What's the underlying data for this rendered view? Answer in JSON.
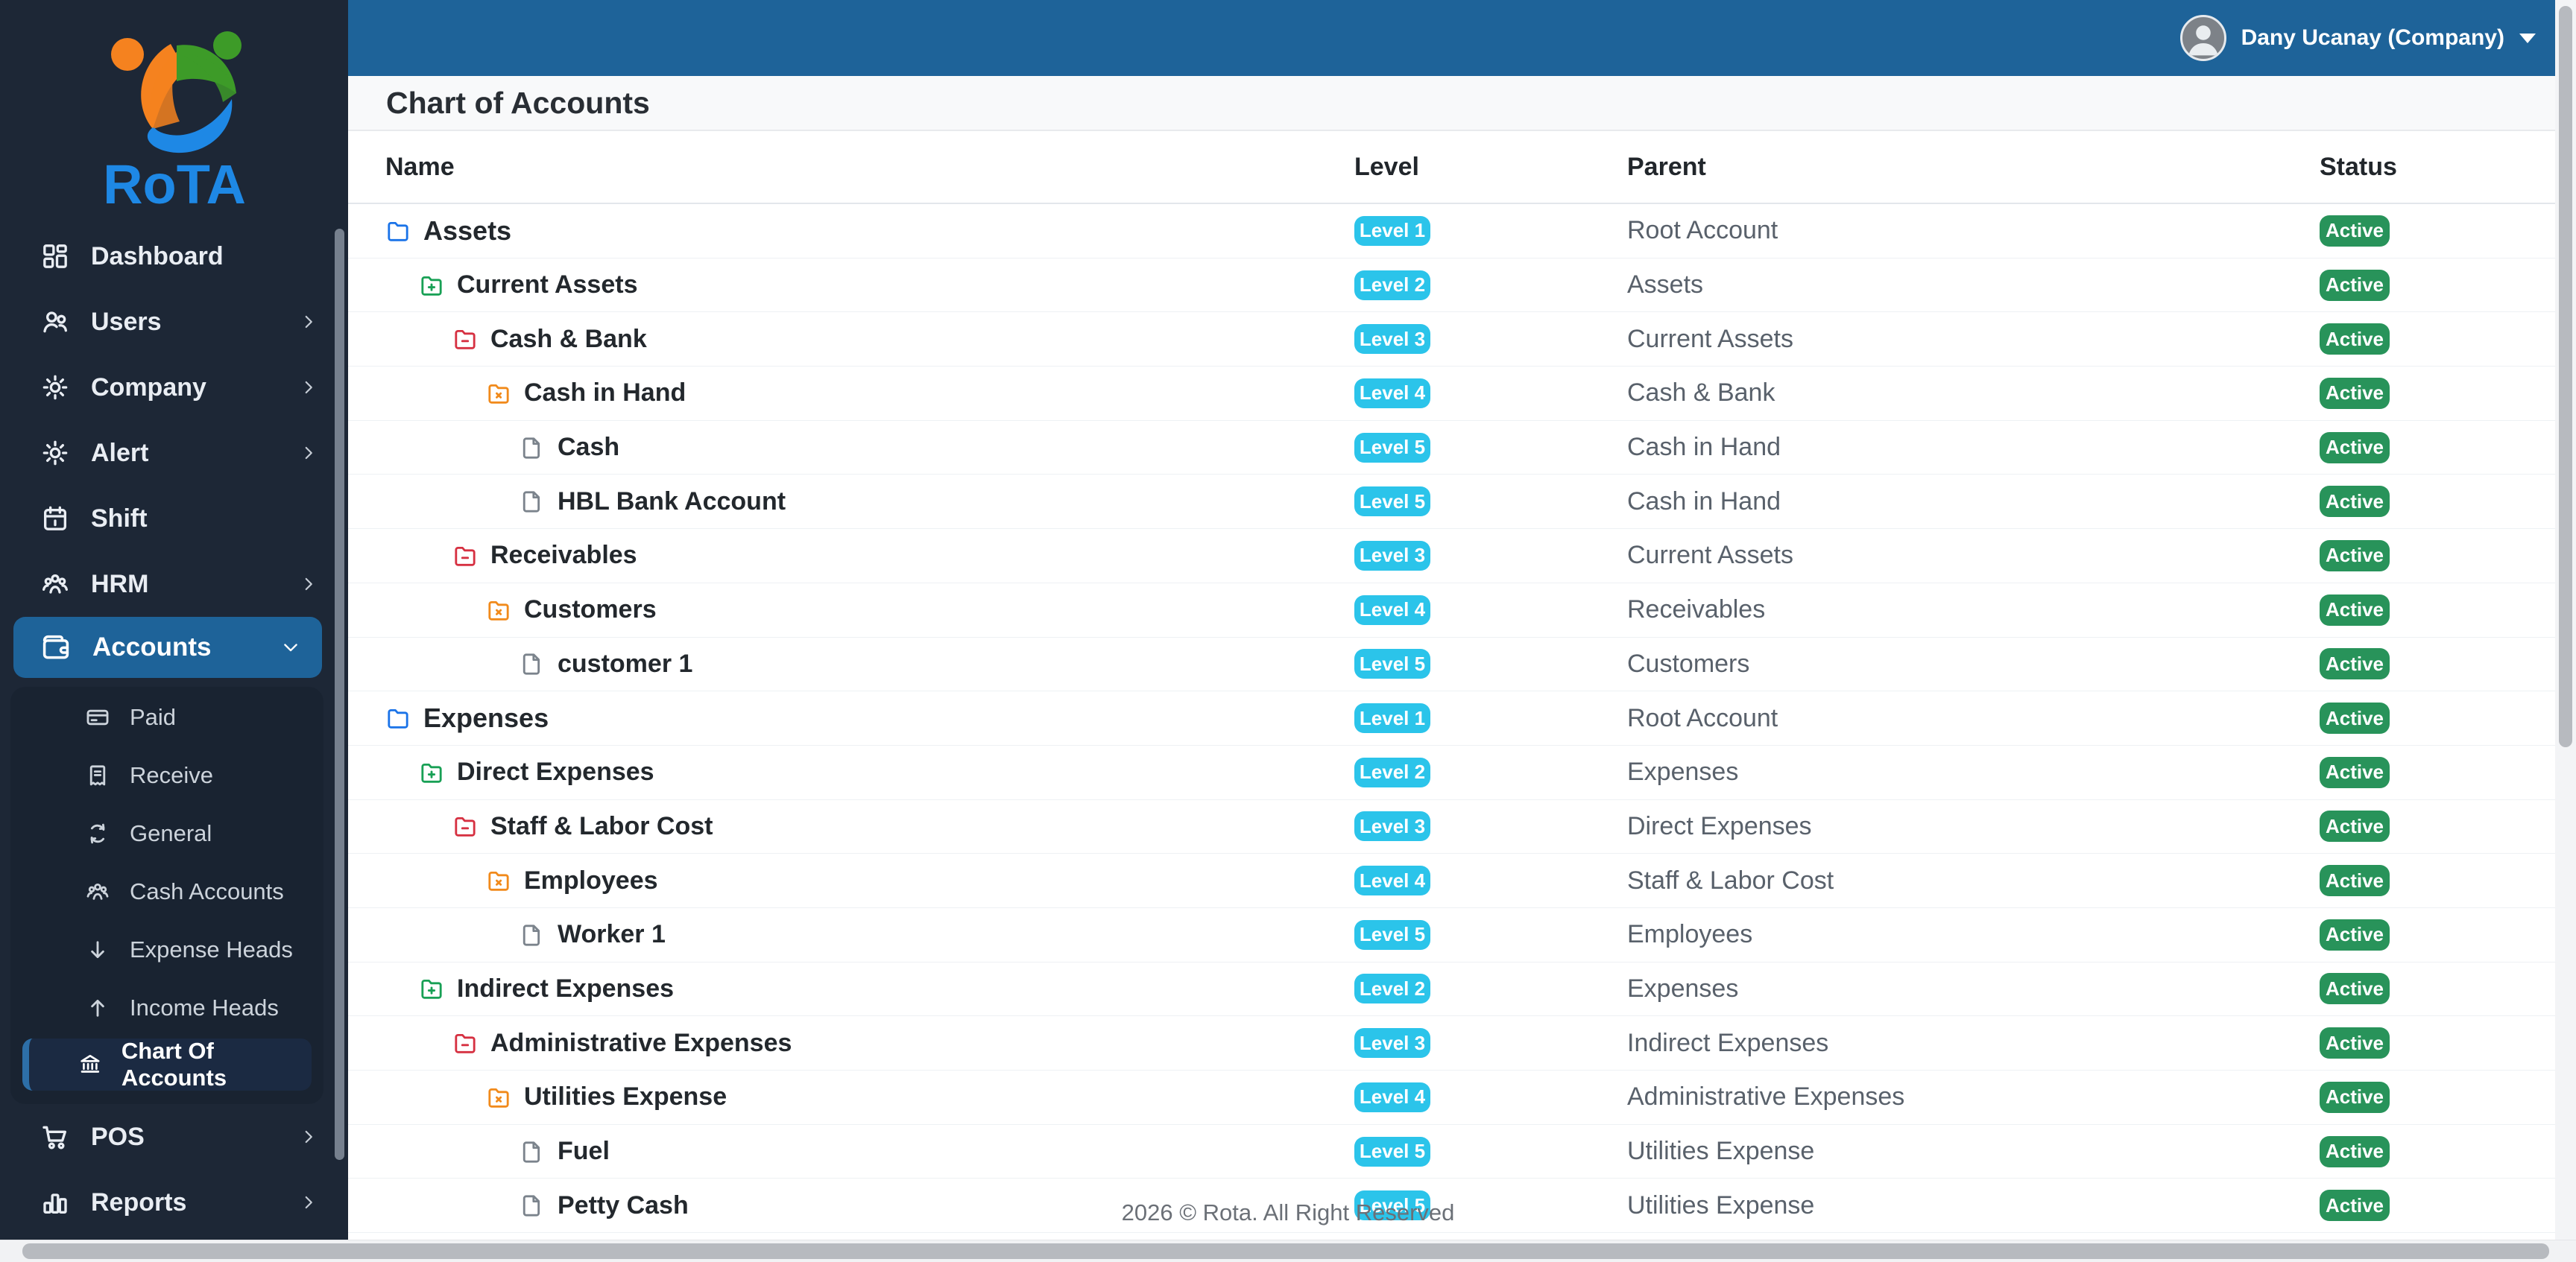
{
  "colors": {
    "header_blue": "#1e6399",
    "sidebar_bg": "#1d2736",
    "submenu_bg": "#192331",
    "active_submenu_bg": "#1b2a42",
    "active_submenu_border": "#2d6fa8",
    "level_badge": "#2bc4ea",
    "status_badge": "#28935a",
    "logo_orange": "#f5821f",
    "logo_green": "#3d9b28",
    "logo_blue": "#1e88e5",
    "tree_level_colors": [
      "#1a73e8",
      "#18a055",
      "#d63041",
      "#f18a1b",
      "#7b838c"
    ]
  },
  "brand": {
    "name": "RoTA"
  },
  "header": {
    "user": "Dany Ucanay (Company)"
  },
  "page": {
    "title": "Chart of Accounts",
    "footer": "2026 © Rota. All Right Reserved"
  },
  "sidebar": {
    "items_top": [
      {
        "label": "Dashboard",
        "icon": "grid-icon",
        "chevron": null
      },
      {
        "label": "Users",
        "icon": "users-icon",
        "chevron": "right"
      },
      {
        "label": "Company",
        "icon": "gear-icon",
        "chevron": "right"
      },
      {
        "label": "Alert",
        "icon": "gear-icon",
        "chevron": "right"
      },
      {
        "label": "Shift",
        "icon": "calendar-icon",
        "chevron": null
      },
      {
        "label": "HRM",
        "icon": "people-icon",
        "chevron": "right"
      }
    ],
    "accounts": {
      "label": "Accounts",
      "icon": "wallet-icon",
      "chevron": "down",
      "active": true
    },
    "submenu": [
      {
        "label": "Paid",
        "icon": "credit-card-icon",
        "active": false
      },
      {
        "label": "Receive",
        "icon": "receipt-icon",
        "active": false
      },
      {
        "label": "General",
        "icon": "sync-icon",
        "active": false
      },
      {
        "label": "Cash Accounts",
        "icon": "people-icon",
        "active": false
      },
      {
        "label": "Expense Heads",
        "icon": "arrow-down-icon",
        "active": false
      },
      {
        "label": "Income Heads",
        "icon": "arrow-up-icon",
        "active": false
      },
      {
        "label": "Chart Of Accounts",
        "icon": "bank-icon",
        "active": true
      }
    ],
    "items_bottom": [
      {
        "label": "POS",
        "icon": "cart-icon",
        "chevron": "right"
      },
      {
        "label": "Reports",
        "icon": "bar-chart-icon",
        "chevron": "right"
      }
    ]
  },
  "table": {
    "columns": [
      "Name",
      "Level",
      "Parent",
      "Status"
    ],
    "rows": [
      {
        "name": "Assets",
        "level": 1,
        "level_label": "Level 1",
        "parent": "Root Account",
        "status": "Active",
        "icon": "folder-icon"
      },
      {
        "name": "Current Assets",
        "level": 2,
        "level_label": "Level 2",
        "parent": "Assets",
        "status": "Active",
        "icon": "folder-plus-icon"
      },
      {
        "name": "Cash & Bank",
        "level": 3,
        "level_label": "Level 3",
        "parent": "Current Assets",
        "status": "Active",
        "icon": "folder-minus-icon"
      },
      {
        "name": "Cash in Hand",
        "level": 4,
        "level_label": "Level 4",
        "parent": "Cash & Bank",
        "status": "Active",
        "icon": "folder-x-icon"
      },
      {
        "name": "Cash",
        "level": 5,
        "level_label": "Level 5",
        "parent": "Cash in Hand",
        "status": "Active",
        "icon": "file-icon"
      },
      {
        "name": "HBL Bank Account",
        "level": 5,
        "level_label": "Level 5",
        "parent": "Cash in Hand",
        "status": "Active",
        "icon": "file-icon"
      },
      {
        "name": "Receivables",
        "level": 3,
        "level_label": "Level 3",
        "parent": "Current Assets",
        "status": "Active",
        "icon": "folder-minus-icon"
      },
      {
        "name": "Customers",
        "level": 4,
        "level_label": "Level 4",
        "parent": "Receivables",
        "status": "Active",
        "icon": "folder-x-icon"
      },
      {
        "name": "customer 1",
        "level": 5,
        "level_label": "Level 5",
        "parent": "Customers",
        "status": "Active",
        "icon": "file-icon"
      },
      {
        "name": "Expenses",
        "level": 1,
        "level_label": "Level 1",
        "parent": "Root Account",
        "status": "Active",
        "icon": "folder-icon"
      },
      {
        "name": "Direct Expenses",
        "level": 2,
        "level_label": "Level 2",
        "parent": "Expenses",
        "status": "Active",
        "icon": "folder-plus-icon"
      },
      {
        "name": "Staff & Labor Cost",
        "level": 3,
        "level_label": "Level 3",
        "parent": "Direct Expenses",
        "status": "Active",
        "icon": "folder-minus-icon"
      },
      {
        "name": "Employees",
        "level": 4,
        "level_label": "Level 4",
        "parent": "Staff & Labor Cost",
        "status": "Active",
        "icon": "folder-x-icon"
      },
      {
        "name": "Worker 1",
        "level": 5,
        "level_label": "Level 5",
        "parent": "Employees",
        "status": "Active",
        "icon": "file-icon"
      },
      {
        "name": "Indirect Expenses",
        "level": 2,
        "level_label": "Level 2",
        "parent": "Expenses",
        "status": "Active",
        "icon": "folder-plus-icon"
      },
      {
        "name": "Administrative Expenses",
        "level": 3,
        "level_label": "Level 3",
        "parent": "Indirect Expenses",
        "status": "Active",
        "icon": "folder-minus-icon"
      },
      {
        "name": "Utilities Expense",
        "level": 4,
        "level_label": "Level 4",
        "parent": "Administrative Expenses",
        "status": "Active",
        "icon": "folder-x-icon"
      },
      {
        "name": "Fuel",
        "level": 5,
        "level_label": "Level 5",
        "parent": "Utilities Expense",
        "status": "Active",
        "icon": "file-icon"
      },
      {
        "name": "Petty Cash",
        "level": 5,
        "level_label": "Level 5",
        "parent": "Utilities Expense",
        "status": "Active",
        "icon": "file-icon"
      }
    ]
  }
}
